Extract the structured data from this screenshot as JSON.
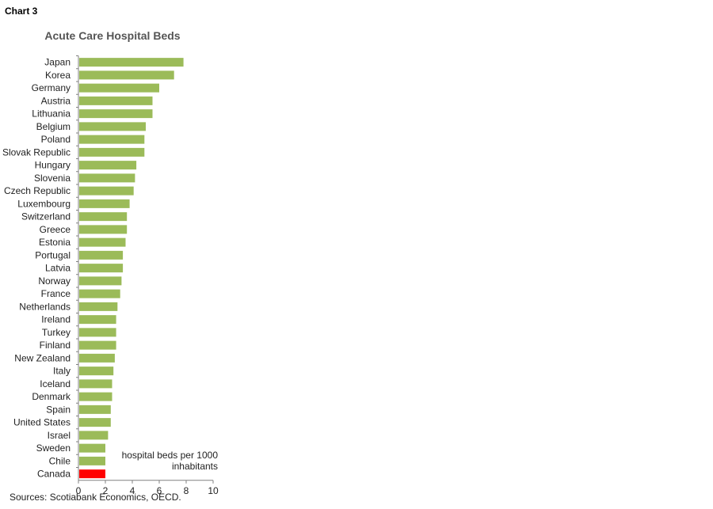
{
  "header": {
    "chart_label": "Chart 3"
  },
  "footer": {
    "sources": "Sources: Scotiabank Economics,  OECD."
  },
  "colors": {
    "bar_default": "#9BBB59",
    "bar_highlight": "#FF0000",
    "axis": "#808080"
  },
  "chart_data": {
    "type": "bar",
    "orientation": "horizontal",
    "title": "Acute Care Hospital Beds",
    "annotation": [
      "hospital beds per 1000",
      "inhabitants"
    ],
    "categories": [
      "Japan",
      "Korea",
      "Germany",
      "Austria",
      "Lithuania",
      "Belgium",
      "Poland",
      "Slovak Republic",
      "Hungary",
      "Slovenia",
      "Czech Republic",
      "Luxembourg",
      "Switzerland",
      "Greece",
      "Estonia",
      "Portugal",
      "Latvia",
      "Norway",
      "France",
      "Netherlands",
      "Ireland",
      "Turkey",
      "Finland",
      "New Zealand",
      "Italy",
      "Iceland",
      "Denmark",
      "Spain",
      "United States",
      "Israel",
      "Sweden",
      "Chile",
      "Canada"
    ],
    "values": [
      7.8,
      7.1,
      6.0,
      5.5,
      5.5,
      5.0,
      4.9,
      4.9,
      4.3,
      4.2,
      4.1,
      3.8,
      3.6,
      3.6,
      3.5,
      3.3,
      3.3,
      3.2,
      3.1,
      2.9,
      2.8,
      2.8,
      2.8,
      2.7,
      2.6,
      2.5,
      2.5,
      2.4,
      2.4,
      2.2,
      2.0,
      2.0,
      2.0
    ],
    "highlight": "Canada",
    "xlim": [
      0,
      10
    ],
    "xticks": [
      0,
      2,
      4,
      6,
      8,
      10
    ],
    "grid": false
  }
}
